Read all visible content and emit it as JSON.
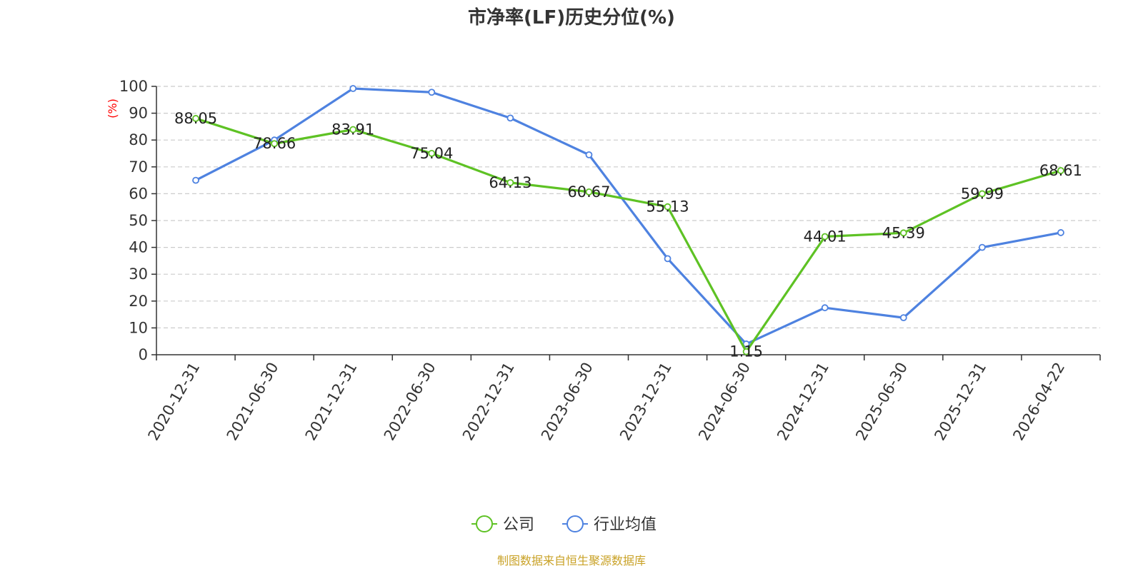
{
  "chart_data": {
    "type": "line",
    "title": "市净率(LF)历史分位(%)",
    "ylabel": "(%)",
    "ylim": [
      0,
      100
    ],
    "yticks": [
      0,
      10,
      20,
      30,
      40,
      50,
      60,
      70,
      80,
      90,
      100
    ],
    "grid": true,
    "legend_position": "bottom",
    "categories": [
      "2020-12-31",
      "2021-06-30",
      "2021-12-31",
      "2022-06-30",
      "2022-12-31",
      "2023-06-30",
      "2023-12-31",
      "2024-06-30",
      "2024-12-31",
      "2025-06-30",
      "2025-12-31",
      "2026-04-22"
    ],
    "series": [
      {
        "name": "公司",
        "color": "#5ec224",
        "show_labels": true,
        "values": [
          88.05,
          78.66,
          83.91,
          75.04,
          64.13,
          60.67,
          55.13,
          1.15,
          44.01,
          45.39,
          59.99,
          68.61
        ],
        "labels": [
          "88.05",
          "78.66",
          "83.91",
          "75.04",
          "64.13",
          "60.67",
          "55.13",
          "1.15",
          "44.01",
          "45.39",
          "59.99",
          "68.61"
        ]
      },
      {
        "name": "行业均值",
        "color": "#4e82e0",
        "show_labels": false,
        "values": [
          65.0,
          80.0,
          99.2,
          97.8,
          88.2,
          74.5,
          35.8,
          4.0,
          17.5,
          13.8,
          40.0,
          45.5
        ]
      }
    ],
    "source": "制图数据来自恒生聚源数据库"
  }
}
